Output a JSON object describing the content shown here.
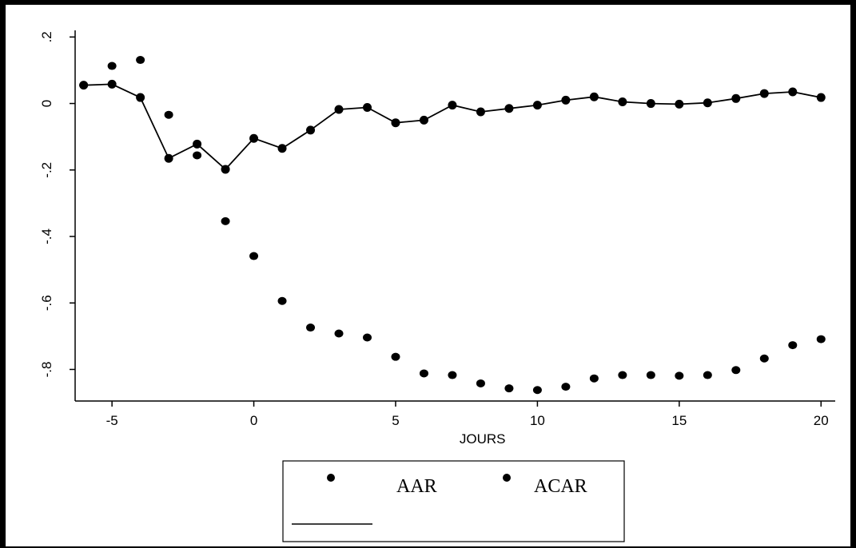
{
  "chart_data": {
    "type": "line",
    "xlabel": "JOURS",
    "ylabel": "",
    "xlim": [
      -6.3,
      20.5
    ],
    "ylim": [
      -0.895,
      0.22
    ],
    "x_ticks": [
      -5,
      0,
      5,
      10,
      15,
      20
    ],
    "x_tick_labels": [
      "-5",
      "0",
      "5",
      "10",
      "15",
      "20"
    ],
    "y_ticks": [
      0.2,
      0,
      -0.2,
      -0.4,
      -0.6,
      -0.8
    ],
    "y_tick_labels": [
      ".2",
      "0",
      "-.2",
      "-.4",
      "-.6",
      "-.8"
    ],
    "grid": false,
    "legend_position": "bottom",
    "series": [
      {
        "name": "AAR",
        "style": "line-with-markers",
        "color": "#000000",
        "x": [
          -6,
          -5,
          -4,
          -3,
          -2,
          -1,
          0,
          1,
          2,
          3,
          4,
          5,
          6,
          7,
          8,
          9,
          10,
          11,
          12,
          13,
          14,
          15,
          16,
          17,
          18,
          19,
          20
        ],
        "y": [
          0.055,
          0.058,
          0.018,
          -0.165,
          -0.122,
          -0.198,
          -0.105,
          -0.135,
          -0.08,
          -0.018,
          -0.012,
          -0.058,
          -0.05,
          -0.005,
          -0.025,
          -0.015,
          -0.005,
          0.01,
          0.02,
          0.005,
          0.0,
          -0.002,
          0.002,
          0.015,
          0.03,
          0.035,
          0.018
        ]
      },
      {
        "name": "ACAR",
        "style": "markers-only",
        "color": "#000000",
        "x": [
          -6,
          -5,
          -4,
          -3,
          -2,
          -1,
          0,
          1,
          2,
          3,
          4,
          5,
          6,
          7,
          8,
          9,
          10,
          11,
          12,
          13,
          14,
          15,
          16,
          17,
          18,
          19,
          20
        ],
        "y": [
          0.055,
          0.113,
          0.131,
          -0.034,
          -0.156,
          -0.354,
          -0.459,
          -0.594,
          -0.674,
          -0.692,
          -0.704,
          -0.762,
          -0.812,
          -0.817,
          -0.842,
          -0.857,
          -0.862,
          -0.852,
          -0.827,
          -0.817,
          -0.817,
          -0.819,
          -0.817,
          -0.802,
          -0.767,
          -0.727,
          -0.709
        ]
      }
    ],
    "legend": {
      "entries": [
        "AAR",
        "ACAR"
      ]
    }
  }
}
